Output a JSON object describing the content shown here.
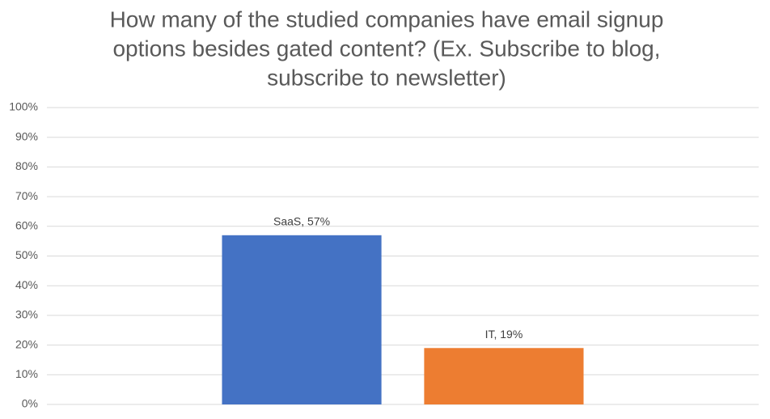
{
  "chart_data": {
    "type": "bar",
    "title": [
      "How many of the studied companies have email signup",
      "options besides gated content? (Ex. Subscribe to blog,",
      "subscribe to newsletter)"
    ],
    "categories": [
      null
    ],
    "series": [
      {
        "color": "#4472c4",
        "values": [
          57
        ],
        "value_labels": [
          "SaaS, 57%"
        ]
      },
      {
        "color": "#ed7d31",
        "values": [
          19
        ],
        "value_labels": [
          "IT, 19%"
        ]
      }
    ],
    "ylim": [
      0,
      100
    ],
    "yticks": [
      {
        "value": 0,
        "label": "0%"
      },
      {
        "value": 10,
        "label": "10%"
      },
      {
        "value": 20,
        "label": "20%"
      },
      {
        "value": 30,
        "label": "30%"
      },
      {
        "value": 40,
        "label": "40%"
      },
      {
        "value": 50,
        "label": "50%"
      },
      {
        "value": 60,
        "label": "60%"
      },
      {
        "value": 70,
        "label": "70%"
      },
      {
        "value": 80,
        "label": "80%"
      },
      {
        "value": 90,
        "label": "90%"
      },
      {
        "value": 100,
        "label": "100%"
      }
    ],
    "grid": true
  }
}
